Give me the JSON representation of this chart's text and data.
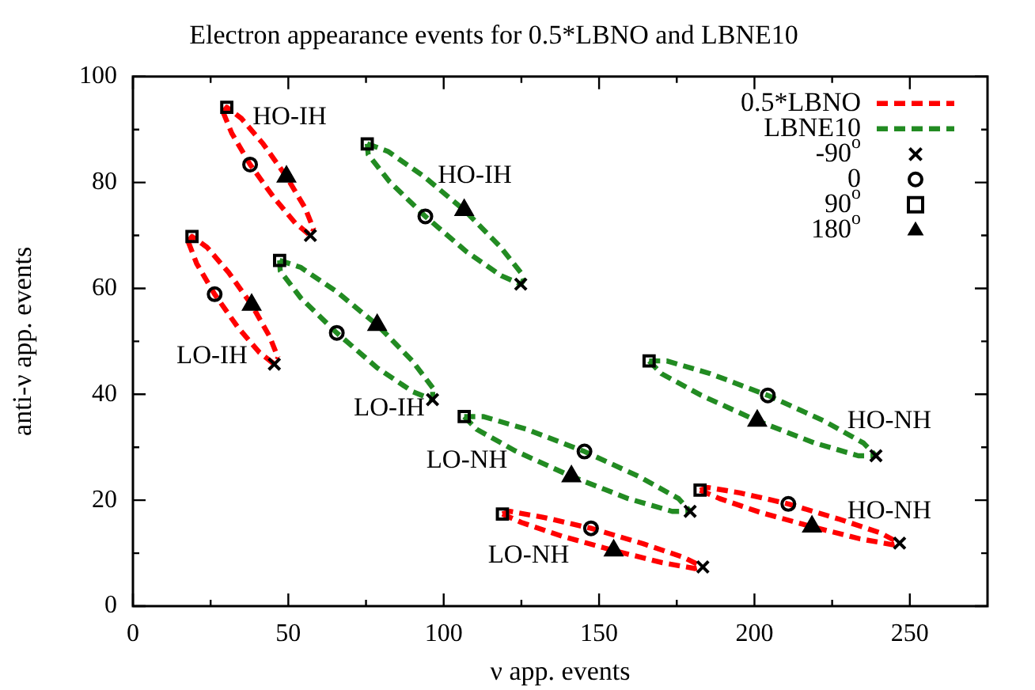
{
  "chart_data": {
    "type": "line",
    "title": "Electron appearance events for 0.5*LBNO and LBNE10",
    "xlabel": "ν app. events",
    "ylabel": "anti-ν app. events",
    "xlim": [
      0,
      275
    ],
    "xticks": [
      0,
      {
        "value": 25,
        "label": null
      },
      50,
      {
        "value": 75,
        "label": null
      },
      100,
      {
        "value": 125,
        "label": null
      },
      150,
      {
        "value": 175,
        "label": null
      },
      200,
      {
        "value": 225,
        "label": null
      },
      250
    ],
    "ylim": [
      0,
      100
    ],
    "yticks": [
      0,
      {
        "value": 10,
        "label": null
      },
      20,
      {
        "value": 30,
        "label": null
      },
      40,
      {
        "value": 50,
        "label": null
      },
      60,
      {
        "value": 70,
        "label": null
      },
      80,
      {
        "value": 90,
        "label": null
      },
      100
    ],
    "legend": "top right",
    "series": [
      {
        "name": "0.5*LBNO",
        "color": "#ff0000",
        "line_style": "dashed",
        "marker": "none",
        "x": [
          29.0,
          30.2,
          34.9,
          41.9,
          49.4,
          55.4,
          58.2
        ],
        "values": [
          93.3,
          94.2,
          92.1,
          87.3,
          81.1,
          75.2,
          71.1
        ]
      },
      {
        "color": "#ff0000",
        "line_style": "dashed",
        "marker": "none",
        "x": [
          29.0,
          31.8,
          37.7,
          45.3,
          52.3,
          57.1,
          58.2
        ],
        "values": [
          93.3,
          89.3,
          83.4,
          77.2,
          72.3,
          70.0,
          71.1
        ]
      },
      {
        "color": "#ff0000",
        "line_style": "dashed",
        "marker": "none",
        "x": [
          17.8,
          19.0,
          23.8,
          30.8,
          38.2,
          44.0,
          46.7
        ],
        "values": [
          68.8,
          69.8,
          67.8,
          63.0,
          56.9,
          50.9,
          46.9
        ]
      },
      {
        "color": "#ff0000",
        "line_style": "dashed",
        "marker": "none",
        "x": [
          17.8,
          20.5,
          26.3,
          33.7,
          40.7,
          45.5,
          46.7
        ],
        "values": [
          68.8,
          64.7,
          58.9,
          52.7,
          47.9,
          45.7,
          46.9
        ]
      },
      {
        "color": "#ff0000",
        "line_style": "dashed",
        "marker": "none",
        "x": [
          118.9,
          125.0,
          138.1,
          154.7,
          170.4,
          180.9,
          183.4
        ],
        "values": [
          17.4,
          15.8,
          13.2,
          10.5,
          8.2,
          7.1,
          7.4
        ]
      },
      {
        "color": "#ff0000",
        "line_style": "dashed",
        "marker": "none",
        "x": [
          118.9,
          121.3,
          131.8,
          147.4,
          164.1,
          177.2,
          183.4
        ],
        "values": [
          17.4,
          17.9,
          16.8,
          14.7,
          11.8,
          9.2,
          7.4
        ]
      },
      {
        "color": "#ff0000",
        "line_style": "dashed",
        "marker": "none",
        "x": [
          182.5,
          188.8,
          201.9,
          218.5,
          234.0,
          244.4,
          246.7
        ],
        "values": [
          21.9,
          20.3,
          17.7,
          15.0,
          12.7,
          11.6,
          11.9
        ]
      },
      {
        "color": "#ff0000",
        "line_style": "dashed",
        "marker": "none",
        "x": [
          182.5,
          185.0,
          195.3,
          210.9,
          227.4,
          240.6,
          246.7
        ],
        "values": [
          21.9,
          22.4,
          21.4,
          19.3,
          16.4,
          13.8,
          11.9
        ]
      },
      {
        "name": "LBNE10",
        "color": "#228b22",
        "line_style": "dashed",
        "marker": "none",
        "x": [
          75.4,
          82.0,
          93.3,
          106.6,
          118.0,
          124.8,
          125.7
        ],
        "values": [
          87.3,
          85.9,
          81.3,
          74.8,
          68.0,
          63.0,
          61.5
        ]
      },
      {
        "color": "#228b22",
        "line_style": "dashed",
        "marker": "none",
        "x": [
          75.4,
          75.7,
          82.5,
          94.1,
          107.2,
          118.5,
          124.8,
          125.7
        ],
        "values": [
          87.3,
          85.3,
          80.2,
          73.6,
          67.0,
          62.4,
          60.8,
          61.5
        ]
      },
      {
        "color": "#228b22",
        "line_style": "dashed",
        "marker": "none",
        "x": [
          47.2,
          53.9,
          65.3,
          78.6,
          89.9,
          96.5
        ],
        "values": [
          65.3,
          64.0,
          59.5,
          53.1,
          46.3,
          41.2
        ]
      },
      {
        "color": "#228b22",
        "line_style": "dashed",
        "marker": "none",
        "x": [
          47.2,
          47.4,
          54.0,
          65.6,
          78.6,
          90.0,
          96.4,
          96.5
        ],
        "values": [
          65.3,
          63.3,
          58.2,
          51.6,
          45.0,
          40.5,
          39.0,
          41.2
        ]
      },
      {
        "color": "#228b22",
        "line_style": "dashed",
        "marker": "none",
        "x": [
          106.6,
          110.6,
          123.1,
          141.1,
          159.4,
          173.5,
          179.3
        ],
        "values": [
          35.8,
          33.4,
          29.3,
          24.5,
          20.3,
          17.9,
          17.9
        ]
      },
      {
        "color": "#228b22",
        "line_style": "dashed",
        "marker": "none",
        "x": [
          106.6,
          112.7,
          126.7,
          145.3,
          163.1,
          175.6,
          179.3
        ],
        "values": [
          35.8,
          35.8,
          33.4,
          29.2,
          24.4,
          20.3,
          17.9
        ]
      },
      {
        "color": "#228b22",
        "line_style": "dashed",
        "marker": "none",
        "x": [
          166.1,
          170.1,
          182.9,
          200.9,
          219.4,
          233.4,
          239.1
        ],
        "values": [
          46.3,
          43.9,
          39.8,
          35.0,
          30.8,
          28.4,
          28.4
        ]
      },
      {
        "color": "#228b22",
        "line_style": "dashed",
        "marker": "none",
        "x": [
          166.1,
          171.8,
          185.8,
          204.3,
          222.3,
          235.1,
          239.1
        ],
        "values": [
          46.3,
          46.3,
          43.9,
          39.8,
          35.0,
          30.8,
          28.4
        ]
      },
      {
        "name": "-90$^{o}$",
        "type": "scatter",
        "color": "#000000",
        "marker": "cross",
        "x": [
          57.1,
          45.5,
          183.4,
          246.7,
          124.8,
          96.4,
          179.3,
          239.1
        ],
        "values": [
          70.0,
          45.7,
          7.4,
          11.9,
          60.8,
          39.0,
          17.9,
          28.4
        ]
      },
      {
        "name": "0",
        "type": "scatter",
        "color": "#000000",
        "marker": "circle",
        "x": [
          37.7,
          26.3,
          147.4,
          210.9,
          94.1,
          65.6,
          145.3,
          204.3
        ],
        "values": [
          83.4,
          58.9,
          14.7,
          19.3,
          73.6,
          51.6,
          29.2,
          39.8
        ]
      },
      {
        "name": "90$^{o}$",
        "type": "scatter",
        "color": "#000000",
        "marker": "square",
        "x": [
          30.2,
          19.0,
          118.9,
          182.5,
          75.4,
          47.2,
          106.6,
          166.1
        ],
        "values": [
          94.2,
          69.8,
          17.4,
          21.9,
          87.3,
          65.3,
          35.8,
          46.3
        ]
      },
      {
        "name": "180$^{o}$",
        "type": "scatter",
        "color": "#000000",
        "marker": "triangle",
        "x": [
          49.4,
          38.2,
          154.7,
          218.5,
          106.6,
          78.6,
          141.1,
          200.9
        ],
        "values": [
          81.1,
          56.9,
          10.5,
          15.0,
          74.8,
          53.1,
          24.5,
          35.0
        ]
      }
    ],
    "annotations": [
      "HO-IH",
      "HO-IH",
      "LO-IH",
      "LO-IH",
      "LO-NH",
      "LO-NH",
      "HO-NH",
      "HO-NH"
    ]
  }
}
